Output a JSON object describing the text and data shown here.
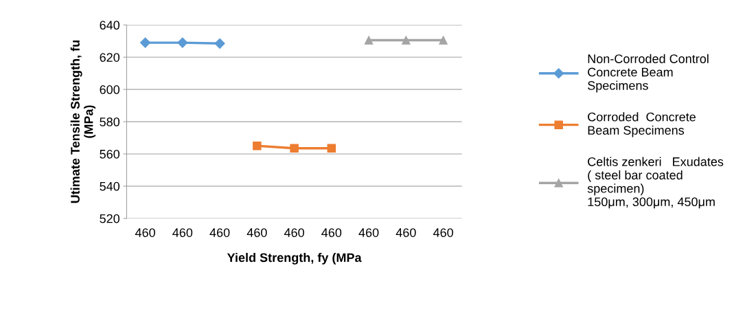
{
  "chart_data": {
    "type": "line",
    "xlabel": "Yield Strength, fy (MPa",
    "ylabel": "Utimate Tensile Strength, fu\n(MPa)",
    "categories": [
      "460",
      "460",
      "460",
      "460",
      "460",
      "460",
      "460",
      "460",
      "460"
    ],
    "series": [
      {
        "name": "Non-Corroded Control\nConcrete Beam\nSpecimens",
        "color": "#5b9bd5",
        "marker": "diamond",
        "values": [
          629,
          629,
          628.5,
          null,
          null,
          null,
          null,
          null,
          null
        ]
      },
      {
        "name": "Corroded  Concrete\nBeam Specimens",
        "color": "#ed7d31",
        "marker": "square",
        "values": [
          null,
          null,
          null,
          565,
          563.5,
          563.5,
          null,
          null,
          null
        ]
      },
      {
        "name": "Celtis zenkeri   Exudates\n( steel bar coated\nspecimen)\n150μm, 300μm, 450μm",
        "color": "#a5a5a5",
        "marker": "triangle",
        "values": [
          null,
          null,
          null,
          null,
          null,
          null,
          630.5,
          630.5,
          630.5
        ]
      }
    ],
    "ylim": [
      520,
      640
    ],
    "yticks": [
      520,
      540,
      560,
      580,
      600,
      620,
      640
    ],
    "grid": "y",
    "legend": "right",
    "line_style": "solid"
  }
}
